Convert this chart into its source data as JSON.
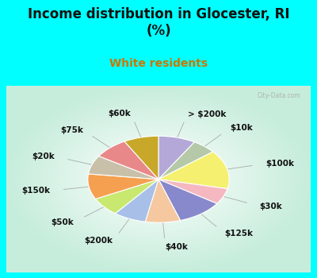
{
  "title": "Income distribution in Glocester, RI\n(%)",
  "subtitle": "White residents",
  "title_color": "#111111",
  "subtitle_color": "#cc7700",
  "background_cyan": "#00ffff",
  "labels": [
    "> $200k",
    "$10k",
    "$100k",
    "$30k",
    "$125k",
    "$40k",
    "$200k",
    "$50k",
    "$150k",
    "$20k",
    "$75k",
    "$60k"
  ],
  "values": [
    8.5,
    5.5,
    14.5,
    6.0,
    10.5,
    8.0,
    7.5,
    7.0,
    9.5,
    7.0,
    8.0,
    8.0
  ],
  "colors": [
    "#b3a8d8",
    "#b5c9a8",
    "#f5f070",
    "#f5b8c0",
    "#8888cc",
    "#f5c8a0",
    "#a8c0e8",
    "#c8e870",
    "#f5a050",
    "#c8c0a8",
    "#e88888",
    "#c8a828"
  ],
  "startangle": 90,
  "label_fontsize": 7.5,
  "label_color": "#111111",
  "title_fontsize": 12,
  "subtitle_fontsize": 10
}
